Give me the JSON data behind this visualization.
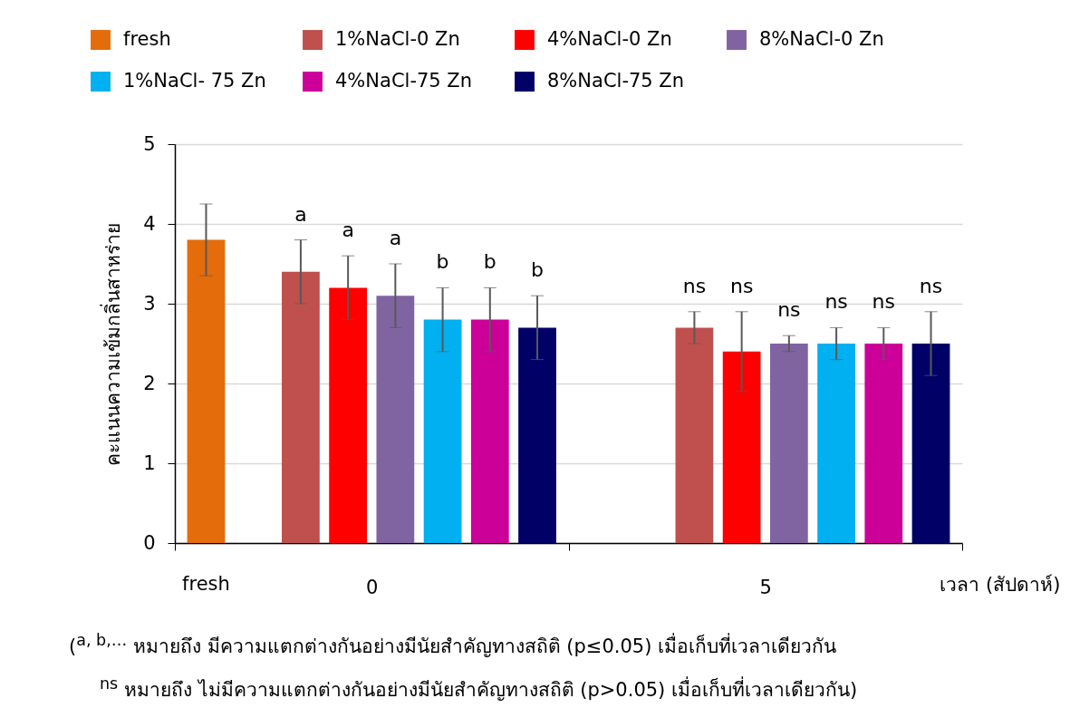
{
  "chart_data": {
    "type": "bar",
    "categories": [
      "0",
      "5"
    ],
    "series": [
      {
        "name": "fresh",
        "color": "#e46c0a",
        "values": [
          3.8,
          null
        ],
        "errors": [
          0.45,
          null
        ]
      },
      {
        "name": "1%NaCl-0 Zn",
        "color": "#c0504d",
        "values": [
          3.4,
          2.7
        ],
        "errors": [
          0.4,
          0.2
        ],
        "value_labels": [
          "a",
          "ns"
        ]
      },
      {
        "name": "4%NaCl-0 Zn",
        "color": "#ff0000",
        "values": [
          3.2,
          2.4
        ],
        "errors": [
          0.4,
          0.5
        ],
        "value_labels": [
          "a",
          "ns"
        ]
      },
      {
        "name": "8%NaCl-0 Zn",
        "color": "#8064a2",
        "values": [
          3.1,
          2.5
        ],
        "errors": [
          0.4,
          0.1
        ],
        "value_labels": [
          "a",
          "ns"
        ]
      },
      {
        "name": "1%NaCl- 75 Zn",
        "color": "#00b0f0",
        "values": [
          2.8,
          2.5
        ],
        "errors": [
          0.4,
          0.2
        ],
        "value_labels": [
          "b",
          "ns"
        ]
      },
      {
        "name": "4%NaCl-75 Zn",
        "color": "#cc0099",
        "values": [
          2.8,
          2.5
        ],
        "errors": [
          0.4,
          0.2
        ],
        "value_labels": [
          "b",
          "ns"
        ]
      },
      {
        "name": "8%NaCl-75 Zn",
        "color": "#000066",
        "values": [
          2.7,
          2.5
        ],
        "errors": [
          0.4,
          0.4
        ],
        "value_labels": [
          "b",
          "ns"
        ]
      }
    ],
    "ylabel": "คะแนนความเข้มกลิ่นสาหร่าย",
    "xlabel": "เวลา (สัปดาห์)",
    "ylim": [
      0,
      5
    ],
    "yticks": [
      0,
      1,
      2,
      3,
      4,
      5
    ],
    "grid": "y",
    "legend": "top",
    "annotations": [
      "fresh",
      "($^{a, b,…}$ หมายถึง มีความแตกต่างกันอย่างมีนัยสำคัญทางสถิติ (p≤0.05) เมื่อเก็บที่เวลาเดียวกัน",
      "$^{ns}$ หมายถึง ไม่มีความแตกต่างกันอย่างมีนัยสำคัญทางสถิติ (p>0.05) เมื่อเก็บที่เวลาเดียวกัน)"
    ]
  }
}
